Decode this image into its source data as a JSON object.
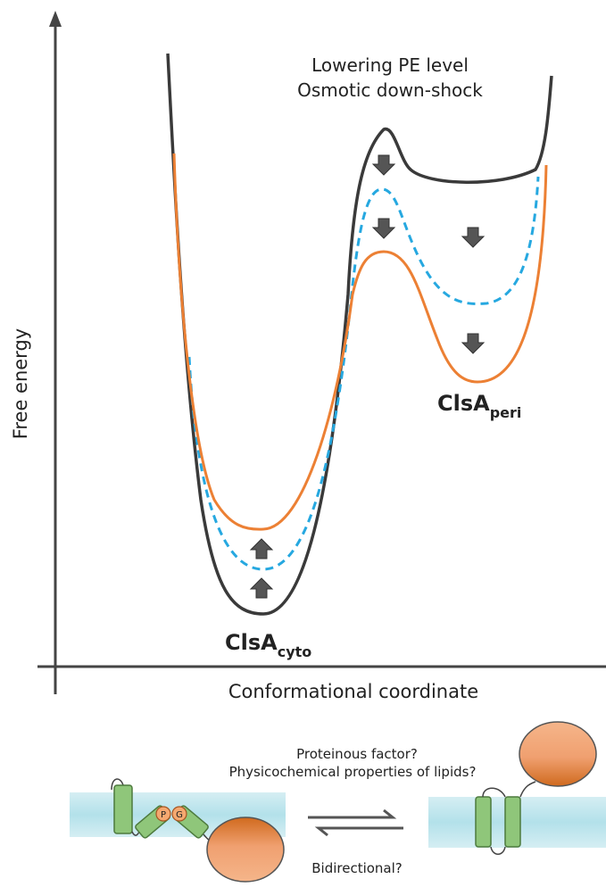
{
  "annotation": {
    "line1": "Lowering PE level",
    "line2": "Osmotic down-shock"
  },
  "states": {
    "cyto": {
      "main": "ClsA",
      "sub": "cyto"
    },
    "peri": {
      "main": "ClsA",
      "sub": "peri"
    }
  },
  "axes": {
    "y_label": "Free energy",
    "x_label": "Conformational coordinate"
  },
  "bottom": {
    "question1": "Proteinous factor?",
    "question2": "Physicochemical properties of lipids?",
    "question3": "Bidirectional?",
    "lipid1": "P",
    "lipid2": "G"
  }
}
